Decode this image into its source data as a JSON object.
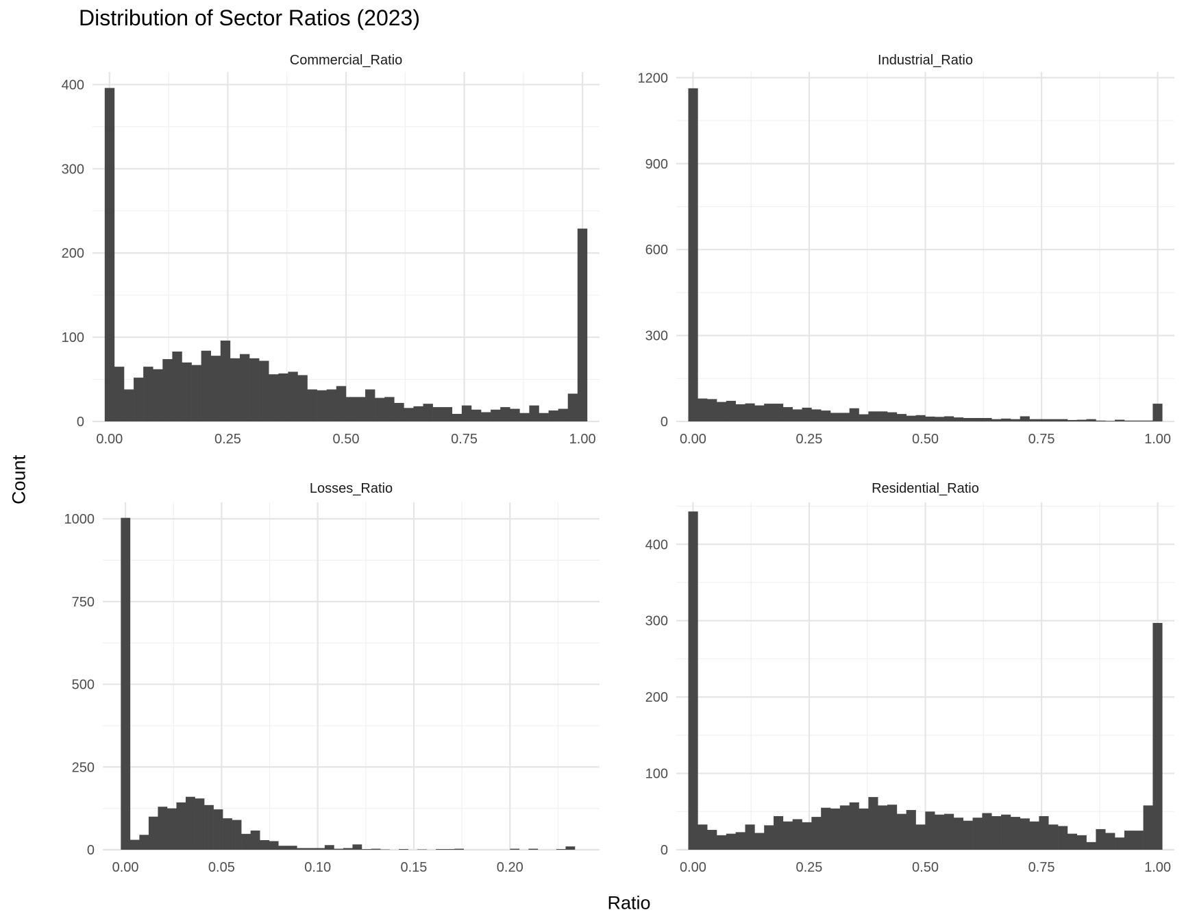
{
  "title": "Distribution of Sector Ratios (2023)",
  "xlabel": "Ratio",
  "ylabel": "Count",
  "colors": {
    "bar": "#474747",
    "grid_major": "#e5e5e5",
    "grid_minor": "#f0f0f0",
    "tick_text": "#4d4d4d"
  },
  "chart_data": [
    {
      "type": "histogram",
      "panel": "Commercial_Ratio",
      "bin_width": 0.0204,
      "bin_start": -0.0102,
      "xlim": [
        -0.036,
        1.036
      ],
      "ylim": [
        0,
        415
      ],
      "x_ticks": [
        0,
        0.25,
        0.5,
        0.75,
        1.0
      ],
      "x_tick_labels": [
        "0.00",
        "0.25",
        "0.50",
        "0.75",
        "1.00"
      ],
      "y_ticks": [
        0,
        100,
        200,
        300,
        400
      ],
      "y_tick_labels": [
        "0",
        "100",
        "200",
        "300",
        "400"
      ],
      "values": [
        396,
        65,
        38,
        52,
        65,
        62,
        74,
        83,
        70,
        67,
        84,
        78,
        96,
        75,
        80,
        75,
        72,
        56,
        57,
        59,
        55,
        38,
        37,
        38,
        42,
        29,
        29,
        38,
        28,
        29,
        22,
        16,
        18,
        21,
        17,
        17,
        9,
        19,
        14,
        11,
        14,
        17,
        15,
        10,
        19,
        10,
        13,
        15,
        33,
        229
      ]
    },
    {
      "type": "histogram",
      "panel": "Industrial_Ratio",
      "bin_width": 0.0204,
      "bin_start": -0.0102,
      "xlim": [
        -0.036,
        1.036
      ],
      "ylim": [
        0,
        1220
      ],
      "x_ticks": [
        0,
        0.25,
        0.5,
        0.75,
        1.0
      ],
      "x_tick_labels": [
        "0.00",
        "0.25",
        "0.50",
        "0.75",
        "1.00"
      ],
      "y_ticks": [
        0,
        300,
        600,
        900,
        1200
      ],
      "y_tick_labels": [
        "0",
        "300",
        "600",
        "900",
        "1200"
      ],
      "values": [
        1163,
        80,
        78,
        68,
        72,
        60,
        63,
        56,
        62,
        62,
        50,
        42,
        48,
        42,
        38,
        30,
        30,
        46,
        25,
        35,
        35,
        32,
        26,
        20,
        22,
        17,
        16,
        18,
        14,
        12,
        12,
        12,
        8,
        10,
        8,
        18,
        8,
        8,
        8,
        8,
        5,
        6,
        8,
        3,
        2,
        6,
        3,
        3,
        3,
        62
      ]
    },
    {
      "type": "histogram",
      "panel": "Losses_Ratio",
      "bin_width": 0.00482,
      "bin_start": -0.00241,
      "xlim": [
        -0.0118,
        0.2466
      ],
      "ylim": [
        0,
        1050
      ],
      "x_ticks": [
        0,
        0.05,
        0.1,
        0.15,
        0.2
      ],
      "x_tick_labels": [
        "0.00",
        "0.05",
        "0.10",
        "0.15",
        "0.20"
      ],
      "y_ticks": [
        0,
        250,
        500,
        750,
        1000
      ],
      "y_tick_labels": [
        "0",
        "250",
        "500",
        "750",
        "1000"
      ],
      "values": [
        1003,
        30,
        45,
        100,
        130,
        125,
        143,
        160,
        155,
        135,
        122,
        95,
        90,
        48,
        58,
        29,
        26,
        12,
        12,
        5,
        5,
        5,
        14,
        3,
        5,
        16,
        2,
        3,
        1,
        0,
        2,
        0,
        1,
        0,
        2,
        2,
        3,
        0,
        0,
        0,
        0,
        0,
        3,
        0,
        3,
        0,
        0,
        2,
        10
      ]
    },
    {
      "type": "histogram",
      "panel": "Residential_Ratio",
      "bin_width": 0.0204,
      "bin_start": -0.0102,
      "xlim": [
        -0.036,
        1.036
      ],
      "ylim": [
        0,
        455
      ],
      "x_ticks": [
        0,
        0.25,
        0.5,
        0.75,
        1.0
      ],
      "x_tick_labels": [
        "0.00",
        "0.25",
        "0.50",
        "0.75",
        "1.00"
      ],
      "y_ticks": [
        0,
        100,
        200,
        300,
        400
      ],
      "y_tick_labels": [
        "0",
        "100",
        "200",
        "300",
        "400"
      ],
      "values": [
        443,
        33,
        26,
        19,
        21,
        23,
        33,
        22,
        32,
        44,
        37,
        40,
        36,
        43,
        55,
        54,
        58,
        62,
        54,
        69,
        58,
        59,
        47,
        52,
        33,
        50,
        46,
        47,
        42,
        38,
        42,
        48,
        44,
        46,
        43,
        41,
        37,
        44,
        33,
        31,
        21,
        19,
        10,
        27,
        22,
        16,
        25,
        25,
        58,
        297
      ]
    }
  ]
}
